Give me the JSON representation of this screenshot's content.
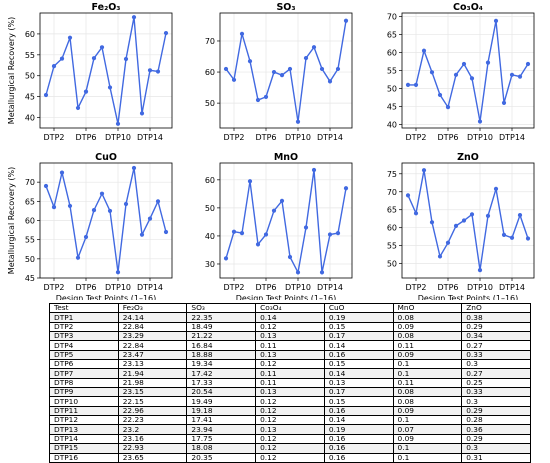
{
  "chart_data": [
    {
      "type": "line",
      "title": "Fe₂O₃",
      "ylabel": "Metallurgical Recovery (%)",
      "xlabel": "",
      "ylim": [
        37.5,
        65
      ],
      "yticks": [
        40,
        45,
        50,
        55,
        60
      ],
      "xticks": [
        "DTP2",
        "DTP6",
        "DTP10",
        "DTP14"
      ],
      "x": [
        1,
        2,
        3,
        4,
        5,
        6,
        7,
        8,
        9,
        10,
        11,
        12,
        13,
        14,
        15,
        16
      ],
      "series": [
        {
          "values": [
            45.4,
            52.3,
            54.1,
            59.1,
            42.3,
            46.2,
            54.2,
            56.8,
            47.2,
            38.5,
            54.0,
            64.0,
            41.0,
            51.3,
            51.0,
            60.2
          ]
        }
      ]
    },
    {
      "type": "line",
      "title": "SO₃",
      "ylabel": "",
      "xlabel": "",
      "ylim": [
        42,
        79
      ],
      "yticks": [
        50,
        60,
        70
      ],
      "xticks": [
        "DTP2",
        "DTP6",
        "DTP10",
        "DTP14"
      ],
      "x": [
        1,
        2,
        3,
        4,
        5,
        6,
        7,
        8,
        9,
        10,
        11,
        12,
        13,
        14,
        15,
        16
      ],
      "series": [
        {
          "values": [
            61.0,
            57.5,
            72.3,
            63.5,
            51.0,
            52.0,
            60.0,
            59.0,
            61.0,
            44.0,
            64.5,
            68.0,
            61.0,
            57.0,
            61.0,
            76.5
          ]
        }
      ]
    },
    {
      "type": "line",
      "title": "Co₃O₄",
      "ylabel": "",
      "xlabel": "",
      "ylim": [
        39,
        71
      ],
      "yticks": [
        40,
        45,
        50,
        55,
        60,
        65,
        70
      ],
      "xticks": [
        "DTP2",
        "DTP6",
        "DTP10",
        "DTP14"
      ],
      "x": [
        1,
        2,
        3,
        4,
        5,
        6,
        7,
        8,
        9,
        10,
        11,
        12,
        13,
        14,
        15,
        16
      ],
      "series": [
        {
          "values": [
            51.0,
            51.0,
            60.5,
            54.5,
            48.2,
            44.8,
            53.8,
            56.8,
            52.8,
            40.8,
            57.2,
            68.8,
            46.0,
            53.8,
            53.3,
            56.8
          ]
        }
      ]
    },
    {
      "type": "line",
      "title": "CuO",
      "ylabel": "Metallurgical Recovery (%)",
      "xlabel": "Design Test Points (1–16)",
      "ylim": [
        45,
        75
      ],
      "yticks": [
        45,
        50,
        55,
        60,
        65,
        70
      ],
      "xticks": [
        "DTP2",
        "DTP6",
        "DTP10",
        "DTP14"
      ],
      "x": [
        1,
        2,
        3,
        4,
        5,
        6,
        7,
        8,
        9,
        10,
        11,
        12,
        13,
        14,
        15,
        16
      ],
      "series": [
        {
          "values": [
            69.0,
            63.5,
            72.5,
            63.8,
            50.3,
            55.7,
            62.7,
            67.0,
            62.5,
            46.5,
            64.3,
            73.7,
            56.3,
            60.5,
            65.0,
            57.0
          ]
        }
      ]
    },
    {
      "type": "line",
      "title": "MnO",
      "ylabel": "",
      "xlabel": "Design Test Points (1–16)",
      "ylim": [
        25,
        66
      ],
      "yticks": [
        30,
        40,
        50,
        60
      ],
      "xticks": [
        "DTP2",
        "DTP6",
        "DTP10",
        "DTP14"
      ],
      "x": [
        1,
        2,
        3,
        4,
        5,
        6,
        7,
        8,
        9,
        10,
        11,
        12,
        13,
        14,
        15,
        16
      ],
      "series": [
        {
          "values": [
            32.0,
            41.5,
            41.0,
            59.5,
            37.0,
            40.5,
            49.0,
            52.5,
            32.5,
            27.0,
            43.0,
            63.5,
            27.0,
            40.5,
            41.0,
            57.0
          ]
        }
      ]
    },
    {
      "type": "line",
      "title": "ZnO",
      "ylabel": "",
      "xlabel": "Design Test Points (1–16)",
      "ylim": [
        46,
        78
      ],
      "yticks": [
        50,
        55,
        60,
        65,
        70,
        75
      ],
      "xticks": [
        "DTP2",
        "DTP6",
        "DTP10",
        "DTP14"
      ],
      "x": [
        1,
        2,
        3,
        4,
        5,
        6,
        7,
        8,
        9,
        10,
        11,
        12,
        13,
        14,
        15,
        16
      ],
      "series": [
        {
          "values": [
            69.0,
            64.0,
            76.0,
            61.5,
            52.0,
            55.8,
            60.5,
            62.0,
            63.7,
            48.2,
            63.3,
            70.8,
            58.0,
            57.2,
            63.5,
            57.0
          ]
        }
      ]
    }
  ],
  "colors": {
    "line": "#4169e1",
    "grid": "#e6e6e6"
  },
  "table": {
    "headers": [
      "Test",
      "Fe₂O₃",
      "SO₃",
      "Co₃O₄",
      "CuO",
      "MnO",
      "ZnO"
    ],
    "rows": [
      [
        "DTP1",
        "24.14",
        "22.35",
        "0.14",
        "0.19",
        "0.08",
        "0.38"
      ],
      [
        "DTP2",
        "22.84",
        "18.49",
        "0.12",
        "0.15",
        "0.09",
        "0.29"
      ],
      [
        "DTP3",
        "23.29",
        "21.22",
        "0.13",
        "0.17",
        "0.08",
        "0.34"
      ],
      [
        "DTP4",
        "22.84",
        "16.84",
        "0.11",
        "0.14",
        "0.11",
        "0.27"
      ],
      [
        "DTP5",
        "23.47",
        "18.88",
        "0.13",
        "0.16",
        "0.09",
        "0.33"
      ],
      [
        "DTP6",
        "23.13",
        "19.34",
        "0.12",
        "0.15",
        "0.1",
        "0.3"
      ],
      [
        "DTP7",
        "21.94",
        "17.42",
        "0.11",
        "0.14",
        "0.1",
        "0.27"
      ],
      [
        "DTP8",
        "21.98",
        "17.33",
        "0.11",
        "0.13",
        "0.11",
        "0.25"
      ],
      [
        "DTP9",
        "23.15",
        "20.54",
        "0.13",
        "0.17",
        "0.08",
        "0.33"
      ],
      [
        "DTP10",
        "22.15",
        "19.49",
        "0.12",
        "0.15",
        "0.08",
        "0.3"
      ],
      [
        "DTP11",
        "22.96",
        "19.18",
        "0.12",
        "0.16",
        "0.09",
        "0.29"
      ],
      [
        "DTP12",
        "22.23",
        "17.41",
        "0.12",
        "0.14",
        "0.1",
        "0.28"
      ],
      [
        "DTP13",
        "23.2",
        "23.94",
        "0.13",
        "0.19",
        "0.07",
        "0.36"
      ],
      [
        "DTP14",
        "23.16",
        "17.75",
        "0.12",
        "0.16",
        "0.09",
        "0.29"
      ],
      [
        "DTP15",
        "22.93",
        "18.08",
        "0.12",
        "0.16",
        "0.1",
        "0.3"
      ],
      [
        "DTP16",
        "23.65",
        "20.35",
        "0.12",
        "0.16",
        "0.1",
        "0.31"
      ]
    ]
  }
}
